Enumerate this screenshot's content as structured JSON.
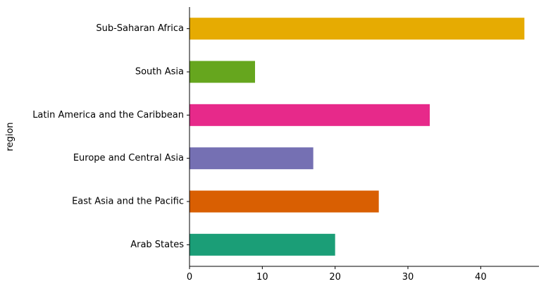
{
  "chart_data": {
    "type": "bar",
    "orientation": "horizontal",
    "title": "",
    "xlabel": "",
    "ylabel": "region",
    "categories": [
      "Arab States",
      "East Asia and the Pacific",
      "Europe and Central Asia",
      "Latin America and the Caribbean",
      "South Asia",
      "Sub-Saharan Africa"
    ],
    "values": [
      20,
      26,
      17,
      33,
      9,
      46
    ],
    "colors": [
      "#1b9e77",
      "#d95f02",
      "#7570b3",
      "#e7298a",
      "#66a61e",
      "#e6ab02"
    ],
    "xlim": [
      0,
      48
    ],
    "xticks": [
      0,
      10,
      20,
      30,
      40
    ],
    "grid": false,
    "legend": "none"
  }
}
